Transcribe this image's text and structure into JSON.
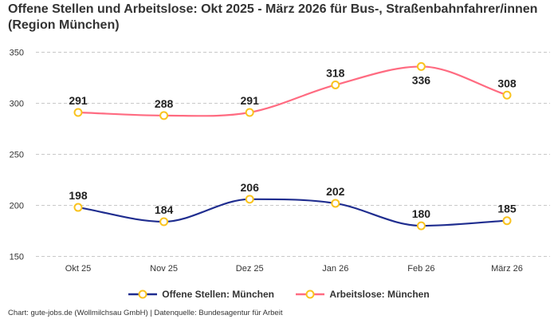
{
  "chart_data": {
    "type": "line",
    "title": "Offene Stellen und Arbeitslose: Okt 2025 - März 2026 für Bus-, Straßenbahnfahrer/innen (Region München)",
    "categories": [
      "Okt 25",
      "Nov 25",
      "Dez 25",
      "Jan 26",
      "Feb 26",
      "März 26"
    ],
    "series": [
      {
        "name": "Offene Stellen: München",
        "values": [
          198,
          184,
          206,
          202,
          180,
          185
        ],
        "color": "#1f2d8f"
      },
      {
        "name": "Arbeitslose: München",
        "values": [
          291,
          288,
          291,
          318,
          336,
          308
        ],
        "color": "#ff6b81"
      }
    ],
    "marker_color": "#f9c31f",
    "ylim": [
      150,
      350
    ],
    "yticks": [
      150,
      200,
      250,
      300,
      350
    ],
    "grid": true,
    "legend": "bottom",
    "xlabel": "",
    "ylabel": ""
  },
  "credit": "Chart: gute-jobs.de (Wollmilchsau GmbH) | Datenquelle: Bundesagentur für Arbeit"
}
